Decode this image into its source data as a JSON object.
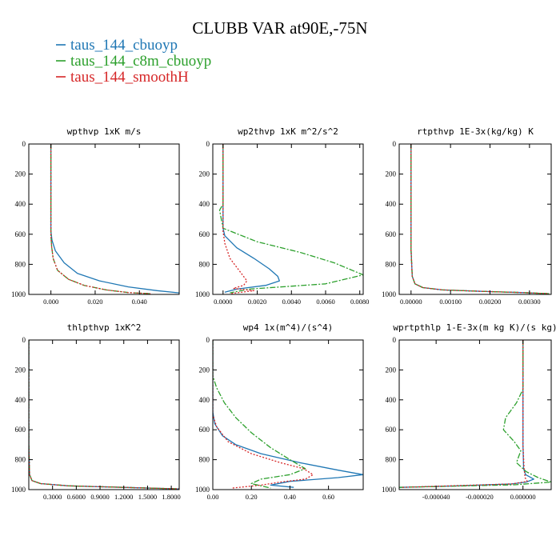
{
  "figure": {
    "title": "CLUBB VAR at90E,-75N",
    "legend": [
      {
        "name": "taus_144_cbuoyp",
        "color": "#1f77b4",
        "dash": "solid"
      },
      {
        "name": "taus_144_c8m_cbuoyp",
        "color": "#2ca02c",
        "dash": "dashdot"
      },
      {
        "name": "taus_144_smoothH",
        "color": "#d62728",
        "dash": "dotted"
      }
    ]
  },
  "chart_data": [
    {
      "type": "line",
      "title": "wpthvp  1xK m/s",
      "xlim": [
        -0.01,
        0.058
      ],
      "ylim": [
        0,
        1000
      ],
      "xticks": [
        0,
        0.02,
        0.04
      ],
      "xtick_labels": [
        "0.000",
        "0.020",
        "0.040"
      ],
      "yticks": [
        0,
        200,
        400,
        600,
        800,
        1000
      ],
      "ytick_labels": [
        "0",
        "200",
        "400",
        "600",
        "800",
        "1000"
      ],
      "series": [
        {
          "name": "taus_144_cbuoyp",
          "x": [
            0,
            0,
            0,
            0.0005,
            0.002,
            0.006,
            0.012,
            0.022,
            0.035,
            0.048,
            0.058
          ],
          "y": [
            0,
            400,
            580,
            640,
            710,
            790,
            860,
            910,
            950,
            975,
            990
          ]
        },
        {
          "name": "taus_144_c8m_cbuoyp",
          "x": [
            0,
            0,
            0,
            0.0003,
            0.001,
            0.003,
            0.008,
            0.015,
            0.025,
            0.035,
            0.045
          ],
          "y": [
            0,
            400,
            600,
            680,
            760,
            840,
            900,
            940,
            970,
            988,
            995
          ]
        },
        {
          "name": "taus_144_smoothH",
          "x": [
            0,
            0,
            0,
            0.0003,
            0.001,
            0.003,
            0.008,
            0.015,
            0.025,
            0.035,
            0.045
          ],
          "y": [
            0,
            400,
            600,
            680,
            760,
            840,
            900,
            940,
            970,
            988,
            995
          ]
        }
      ]
    },
    {
      "type": "line",
      "title": "wp2thvp  1xK m^2/s^2",
      "xlim": [
        -0.0006,
        0.0082
      ],
      "ylim": [
        0,
        1000
      ],
      "xticks": [
        0,
        0.002,
        0.004,
        0.006,
        0.008
      ],
      "xtick_labels": [
        "0.0000",
        "0.0020",
        "0.0040",
        "0.0060",
        "0.0080"
      ],
      "yticks": [
        0,
        200,
        400,
        600,
        800,
        1000
      ],
      "ytick_labels": [
        "0",
        "200",
        "400",
        "600",
        "800",
        "1000"
      ],
      "series": [
        {
          "name": "taus_144_cbuoyp",
          "x": [
            0,
            0,
            0.0001,
            0.0008,
            0.0018,
            0.0027,
            0.0032,
            0.0033,
            0.0025,
            0.0008,
            0.0001
          ],
          "y": [
            0,
            560,
            610,
            690,
            760,
            830,
            880,
            910,
            940,
            965,
            985
          ]
        },
        {
          "name": "taus_144_c8m_cbuoyp",
          "x": [
            0,
            0,
            -0.0002,
            0,
            0.002,
            0.0045,
            0.0065,
            0.0082,
            0.006,
            0.0015,
            0.0004
          ],
          "y": [
            0,
            400,
            440,
            560,
            650,
            720,
            790,
            870,
            930,
            965,
            990
          ]
        },
        {
          "name": "taus_144_smoothH",
          "x": [
            0,
            0,
            0.0001,
            0.0004,
            0.001,
            0.0014,
            0.0012,
            0.0006,
            0.0018,
            0.0004
          ],
          "y": [
            0,
            580,
            660,
            760,
            850,
            910,
            940,
            960,
            975,
            995
          ]
        }
      ]
    },
    {
      "type": "line",
      "title": "rtpthvp  1E-3x(kg/kg) K",
      "xlim": [
        -0.0003,
        0.00355
      ],
      "ylim": [
        0,
        1000
      ],
      "xticks": [
        0,
        0.001,
        0.002,
        0.003
      ],
      "xtick_labels": [
        "0.00000",
        "0.00100",
        "0.00200",
        "0.00300"
      ],
      "yticks": [
        0,
        200,
        400,
        600,
        800,
        1000
      ],
      "ytick_labels": [
        "0",
        "200",
        "400",
        "600",
        "800",
        "1000"
      ],
      "series": [
        {
          "name": "taus_144_cbuoyp",
          "x": [
            0,
            0,
            3e-05,
            0.0001,
            0.0003,
            0.0008,
            0.0018,
            0.0028,
            0.0035
          ],
          "y": [
            0,
            700,
            880,
            930,
            955,
            970,
            980,
            988,
            995
          ]
        },
        {
          "name": "taus_144_c8m_cbuoyp",
          "x": [
            0,
            0,
            3e-05,
            0.0001,
            0.0003,
            0.0008,
            0.0018,
            0.0028,
            0.0035
          ],
          "y": [
            0,
            700,
            880,
            930,
            955,
            970,
            980,
            988,
            995
          ]
        },
        {
          "name": "taus_144_smoothH",
          "x": [
            0,
            0,
            3e-05,
            0.0001,
            0.0003,
            0.0008,
            0.0018,
            0.0028,
            0.0035
          ],
          "y": [
            0,
            700,
            880,
            930,
            955,
            970,
            980,
            988,
            995
          ]
        }
      ]
    },
    {
      "type": "line",
      "title": "thlpthvp  1xK^2",
      "xlim": [
        0,
        1.9
      ],
      "ylim": [
        0,
        1000
      ],
      "xticks": [
        0.3,
        0.6,
        0.9,
        1.2,
        1.5,
        1.8
      ],
      "xtick_labels": [
        "0.3000",
        "0.6000",
        "0.9000",
        "1.2000",
        "1.5000",
        "1.8000"
      ],
      "yticks": [
        0,
        200,
        400,
        600,
        800,
        1000
      ],
      "ytick_labels": [
        "0",
        "200",
        "400",
        "600",
        "800",
        "1000"
      ],
      "series": [
        {
          "name": "taus_144_cbuoyp",
          "x": [
            0,
            0,
            0.01,
            0.04,
            0.15,
            0.5,
            1.2,
            1.9
          ],
          "y": [
            0,
            700,
            900,
            940,
            960,
            975,
            985,
            995
          ]
        },
        {
          "name": "taus_144_c8m_cbuoyp",
          "x": [
            0,
            0,
            0.01,
            0.04,
            0.15,
            0.5,
            1.2,
            1.9
          ],
          "y": [
            0,
            700,
            900,
            940,
            960,
            975,
            985,
            995
          ]
        },
        {
          "name": "taus_144_smoothH",
          "x": [
            0,
            0,
            0.01,
            0.04,
            0.15,
            0.5,
            1.2,
            1.9
          ],
          "y": [
            0,
            700,
            900,
            940,
            960,
            975,
            985,
            995
          ]
        }
      ]
    },
    {
      "type": "line",
      "title": "wp4  1x(m^4)/(s^4)",
      "xlim": [
        0,
        0.78
      ],
      "ylim": [
        0,
        1000
      ],
      "xticks": [
        0,
        0.2,
        0.4,
        0.6
      ],
      "xtick_labels": [
        "0.00",
        "0.20",
        "0.40",
        "0.60"
      ],
      "yticks": [
        0,
        200,
        400,
        600,
        800,
        1000
      ],
      "ytick_labels": [
        "0",
        "200",
        "400",
        "600",
        "800",
        "1000"
      ],
      "series": [
        {
          "name": "taus_144_cbuoyp",
          "x": [
            0,
            0,
            0.01,
            0.05,
            0.12,
            0.25,
            0.45,
            0.65,
            0.78,
            0.65,
            0.4,
            0.3,
            0.42
          ],
          "y": [
            0,
            480,
            560,
            640,
            700,
            760,
            820,
            870,
            900,
            920,
            945,
            970,
            985
          ]
        },
        {
          "name": "taus_144_c8m_cbuoyp",
          "x": [
            0,
            0,
            0.02,
            0.06,
            0.12,
            0.2,
            0.3,
            0.4,
            0.48,
            0.4,
            0.25,
            0.2,
            0.3
          ],
          "y": [
            0,
            240,
            320,
            420,
            520,
            620,
            720,
            800,
            860,
            900,
            930,
            960,
            990
          ]
        },
        {
          "name": "taus_144_smoothH",
          "x": [
            0,
            0,
            0.02,
            0.08,
            0.2,
            0.35,
            0.47,
            0.52,
            0.48,
            0.35,
            0.25,
            0.1
          ],
          "y": [
            0,
            500,
            580,
            680,
            760,
            820,
            860,
            900,
            930,
            950,
            970,
            990
          ]
        }
      ]
    },
    {
      "type": "line",
      "title": "wprtpthlp  1-E-3x(m kg K)/(s kg)",
      "xlim": [
        -5.7e-05,
        1.3e-05
      ],
      "ylim": [
        0,
        1000
      ],
      "xticks": [
        -4e-05,
        -2e-05,
        0
      ],
      "xtick_labels": [
        "-0.000040",
        "-0.000020",
        "0.000000"
      ],
      "yticks": [
        0,
        200,
        400,
        600,
        800,
        1000
      ],
      "ytick_labels": [
        "0",
        "200",
        "400",
        "600",
        "800",
        "1000"
      ],
      "series": [
        {
          "name": "taus_144_cbuoyp",
          "x": [
            0,
            0,
            3e-07,
            1.2e-06,
            5e-06,
            1.5e-06,
            -5e-06,
            -3e-05,
            -5.7e-05
          ],
          "y": [
            0,
            700,
            860,
            900,
            930,
            950,
            962,
            975,
            985
          ]
        },
        {
          "name": "taus_144_c8m_cbuoyp",
          "x": [
            0,
            0,
            -3e-06,
            -8e-06,
            -9e-06,
            -4e-06,
            -1e-06,
            -3e-06,
            1.5e-06,
            7e-06,
            1.3e-05,
            -4e-06,
            -5.7e-05
          ],
          "y": [
            0,
            330,
            420,
            520,
            600,
            680,
            740,
            820,
            880,
            920,
            950,
            968,
            985
          ]
        },
        {
          "name": "taus_144_smoothH",
          "x": [
            0,
            0,
            5e-07,
            1e-06,
            2e-06,
            -5e-06,
            -5.6e-05
          ],
          "y": [
            0,
            700,
            860,
            920,
            945,
            962,
            985
          ]
        }
      ]
    }
  ]
}
